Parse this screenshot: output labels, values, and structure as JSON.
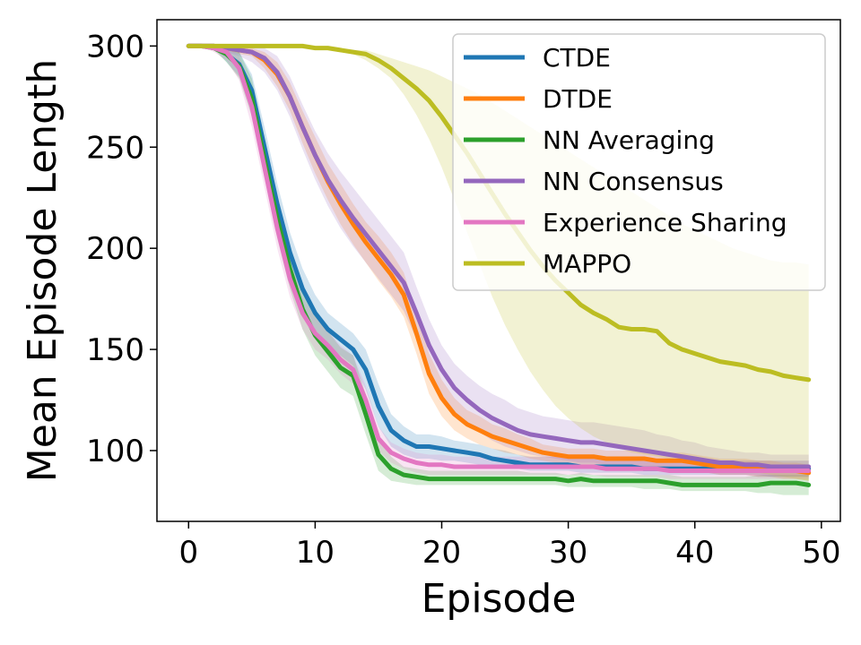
{
  "chart_data": {
    "type": "line",
    "title": "",
    "xlabel": "Episode",
    "ylabel": "Mean Episode Length",
    "xlim": [
      -2.5,
      51.5
    ],
    "ylim": [
      65,
      313
    ],
    "xticks": [
      0,
      10,
      20,
      30,
      40,
      50
    ],
    "yticks": [
      100,
      150,
      200,
      250,
      300
    ],
    "grid": false,
    "legend_position": "top-right",
    "x": [
      0,
      1,
      2,
      3,
      4,
      5,
      6,
      7,
      8,
      9,
      10,
      11,
      12,
      13,
      14,
      15,
      16,
      17,
      18,
      19,
      20,
      21,
      22,
      23,
      24,
      25,
      26,
      27,
      28,
      29,
      30,
      31,
      32,
      33,
      34,
      35,
      36,
      37,
      38,
      39,
      40,
      41,
      42,
      43,
      44,
      45,
      46,
      47,
      48,
      49
    ],
    "series": [
      {
        "name": "CTDE",
        "color": "#1f77b4",
        "values": [
          300,
          300,
          300,
          296,
          291,
          278,
          250,
          222,
          198,
          180,
          168,
          160,
          155,
          150,
          140,
          122,
          110,
          105,
          102,
          102,
          101,
          100,
          99,
          98,
          96,
          95,
          94,
          93,
          93,
          93,
          93,
          92,
          92,
          92,
          92,
          92,
          91,
          91,
          91,
          91,
          91,
          91,
          91,
          91,
          91,
          91,
          91,
          91,
          91,
          91
        ],
        "band_low": [
          300,
          300,
          299,
          292,
          285,
          270,
          240,
          212,
          188,
          171,
          160,
          152,
          147,
          142,
          130,
          112,
          102,
          98,
          96,
          96,
          95,
          95,
          94,
          93,
          92,
          91,
          91,
          90,
          90,
          90,
          90,
          89,
          89,
          89,
          89,
          89,
          88,
          88,
          88,
          88,
          88,
          88,
          88,
          88,
          88,
          88,
          87,
          87,
          87,
          87
        ],
        "band_high": [
          300,
          300,
          300,
          300,
          297,
          286,
          260,
          232,
          208,
          190,
          177,
          168,
          163,
          158,
          150,
          133,
          118,
          112,
          108,
          108,
          107,
          105,
          104,
          103,
          101,
          100,
          98,
          97,
          97,
          97,
          97,
          96,
          96,
          96,
          96,
          96,
          95,
          95,
          95,
          95,
          95,
          95,
          95,
          95,
          95,
          95,
          95,
          95,
          95,
          95
        ]
      },
      {
        "name": "DTDE",
        "color": "#ff7f0e",
        "values": [
          300,
          300,
          300,
          299,
          298,
          297,
          293,
          286,
          275,
          260,
          246,
          233,
          222,
          212,
          203,
          195,
          187,
          177,
          158,
          138,
          126,
          118,
          113,
          110,
          107,
          105,
          103,
          101,
          99,
          98,
          97,
          97,
          97,
          96,
          96,
          96,
          96,
          95,
          95,
          95,
          94,
          93,
          92,
          92,
          92,
          91,
          91,
          90,
          90,
          89
        ],
        "band_low": [
          300,
          300,
          300,
          298,
          296,
          295,
          289,
          280,
          268,
          252,
          237,
          224,
          212,
          202,
          193,
          184,
          176,
          166,
          148,
          128,
          117,
          110,
          106,
          103,
          101,
          99,
          98,
          96,
          95,
          94,
          93,
          93,
          93,
          92,
          92,
          92,
          92,
          91,
          91,
          91,
          90,
          89,
          88,
          88,
          88,
          87,
          87,
          86,
          86,
          85
        ],
        "band_high": [
          300,
          300,
          300,
          300,
          300,
          299,
          297,
          292,
          282,
          268,
          255,
          242,
          232,
          222,
          213,
          206,
          198,
          188,
          168,
          148,
          135,
          126,
          120,
          117,
          113,
          111,
          108,
          106,
          103,
          102,
          101,
          101,
          101,
          100,
          100,
          100,
          100,
          99,
          99,
          99,
          98,
          97,
          96,
          96,
          96,
          95,
          95,
          94,
          94,
          93
        ]
      },
      {
        "name": "NN Averaging",
        "color": "#2ca02c",
        "values": [
          300,
          300,
          299,
          296,
          290,
          274,
          244,
          215,
          190,
          170,
          157,
          149,
          141,
          137,
          118,
          98,
          91,
          88,
          87,
          86,
          86,
          86,
          86,
          86,
          86,
          86,
          86,
          86,
          86,
          86,
          85,
          86,
          85,
          85,
          85,
          85,
          85,
          85,
          84,
          83,
          83,
          83,
          83,
          83,
          83,
          83,
          84,
          84,
          84,
          83
        ],
        "band_low": [
          300,
          300,
          298,
          292,
          284,
          265,
          235,
          205,
          180,
          160,
          147,
          139,
          131,
          127,
          108,
          90,
          85,
          84,
          83,
          83,
          83,
          83,
          83,
          83,
          83,
          83,
          83,
          83,
          83,
          83,
          82,
          82,
          82,
          82,
          82,
          82,
          81,
          81,
          81,
          80,
          80,
          80,
          80,
          80,
          80,
          79,
          79,
          78,
          78,
          78
        ],
        "band_high": [
          300,
          300,
          300,
          299,
          297,
          284,
          254,
          225,
          200,
          180,
          167,
          159,
          151,
          147,
          128,
          106,
          97,
          92,
          91,
          90,
          90,
          90,
          90,
          90,
          90,
          90,
          90,
          89,
          89,
          89,
          88,
          89,
          88,
          88,
          88,
          88,
          88,
          88,
          88,
          87,
          87,
          87,
          87,
          87,
          87,
          88,
          88,
          88,
          88,
          88
        ]
      },
      {
        "name": "NN Consensus",
        "color": "#9467bd",
        "values": [
          300,
          300,
          300,
          299,
          298,
          297,
          294,
          287,
          275,
          260,
          246,
          234,
          224,
          215,
          207,
          199,
          191,
          183,
          168,
          152,
          140,
          131,
          125,
          120,
          116,
          113,
          110,
          108,
          107,
          106,
          105,
          104,
          104,
          103,
          102,
          101,
          100,
          99,
          98,
          97,
          96,
          95,
          94,
          94,
          93,
          93,
          92,
          92,
          92,
          92
        ],
        "band_low": [
          300,
          300,
          300,
          297,
          295,
          292,
          287,
          278,
          265,
          249,
          234,
          221,
          210,
          201,
          193,
          185,
          177,
          169,
          155,
          139,
          128,
          119,
          113,
          109,
          105,
          102,
          100,
          98,
          97,
          96,
          95,
          94,
          94,
          93,
          93,
          92,
          91,
          91,
          90,
          90,
          89,
          89,
          88,
          88,
          88,
          87,
          87,
          87,
          87,
          87
        ],
        "band_high": [
          300,
          300,
          300,
          300,
          300,
          300,
          299,
          295,
          285,
          271,
          258,
          247,
          238,
          230,
          222,
          214,
          206,
          198,
          181,
          165,
          152,
          143,
          137,
          132,
          128,
          125,
          121,
          119,
          117,
          116,
          115,
          114,
          114,
          113,
          112,
          111,
          110,
          108,
          107,
          105,
          104,
          102,
          101,
          100,
          99,
          99,
          98,
          98,
          98,
          98
        ]
      },
      {
        "name": "Experience Sharing",
        "color": "#e377c2",
        "values": [
          300,
          300,
          299,
          297,
          289,
          270,
          240,
          210,
          185,
          168,
          158,
          152,
          145,
          140,
          125,
          106,
          99,
          96,
          94,
          93,
          93,
          92,
          92,
          92,
          92,
          92,
          92,
          92,
          92,
          92,
          92,
          92,
          92,
          91,
          91,
          91,
          91,
          91,
          90,
          90,
          90,
          90,
          90,
          90,
          90,
          90,
          90,
          90,
          90,
          90
        ],
        "band_low": [
          300,
          300,
          297,
          293,
          283,
          260,
          230,
          200,
          176,
          160,
          150,
          145,
          138,
          133,
          118,
          100,
          94,
          91,
          89,
          88,
          88,
          88,
          88,
          88,
          88,
          88,
          88,
          88,
          88,
          88,
          88,
          88,
          88,
          87,
          87,
          87,
          87,
          87,
          86,
          86,
          86,
          86,
          86,
          86,
          86,
          86,
          86,
          86,
          86,
          86
        ],
        "band_high": [
          300,
          300,
          300,
          300,
          295,
          280,
          250,
          220,
          194,
          176,
          166,
          159,
          152,
          147,
          132,
          112,
          104,
          101,
          99,
          98,
          98,
          97,
          97,
          97,
          97,
          97,
          97,
          97,
          97,
          97,
          97,
          97,
          97,
          96,
          96,
          96,
          96,
          96,
          95,
          95,
          95,
          95,
          95,
          95,
          95,
          95,
          95,
          95,
          95,
          95
        ]
      },
      {
        "name": "MAPPO",
        "color": "#bcbd22",
        "values": [
          300,
          300,
          300,
          300,
          300,
          300,
          300,
          300,
          300,
          300,
          299,
          299,
          298,
          297,
          296,
          293,
          289,
          284,
          279,
          273,
          265,
          256,
          247,
          237,
          227,
          217,
          208,
          199,
          191,
          184,
          178,
          172,
          168,
          165,
          161,
          160,
          160,
          159,
          153,
          150,
          148,
          146,
          144,
          143,
          142,
          140,
          139,
          137,
          136,
          135
        ],
        "band_low": [
          300,
          300,
          300,
          300,
          300,
          300,
          300,
          300,
          300,
          300,
          299,
          299,
          298,
          296,
          293,
          289,
          284,
          276,
          266,
          254,
          240,
          224,
          208,
          192,
          176,
          162,
          150,
          139,
          130,
          122,
          116,
          111,
          107,
          104,
          101,
          99,
          98,
          97,
          96,
          95,
          94,
          93,
          92,
          91,
          90,
          89,
          88,
          87,
          86,
          85
        ],
        "band_high": [
          300,
          300,
          300,
          300,
          300,
          300,
          300,
          300,
          300,
          300,
          299,
          299,
          298,
          298,
          298,
          296,
          294,
          292,
          290,
          288,
          285,
          282,
          279,
          276,
          272,
          268,
          264,
          260,
          256,
          252,
          248,
          244,
          240,
          236,
          232,
          228,
          224,
          220,
          216,
          212,
          209,
          206,
          203,
          200,
          198,
          196,
          194,
          193,
          193,
          192
        ]
      }
    ]
  }
}
